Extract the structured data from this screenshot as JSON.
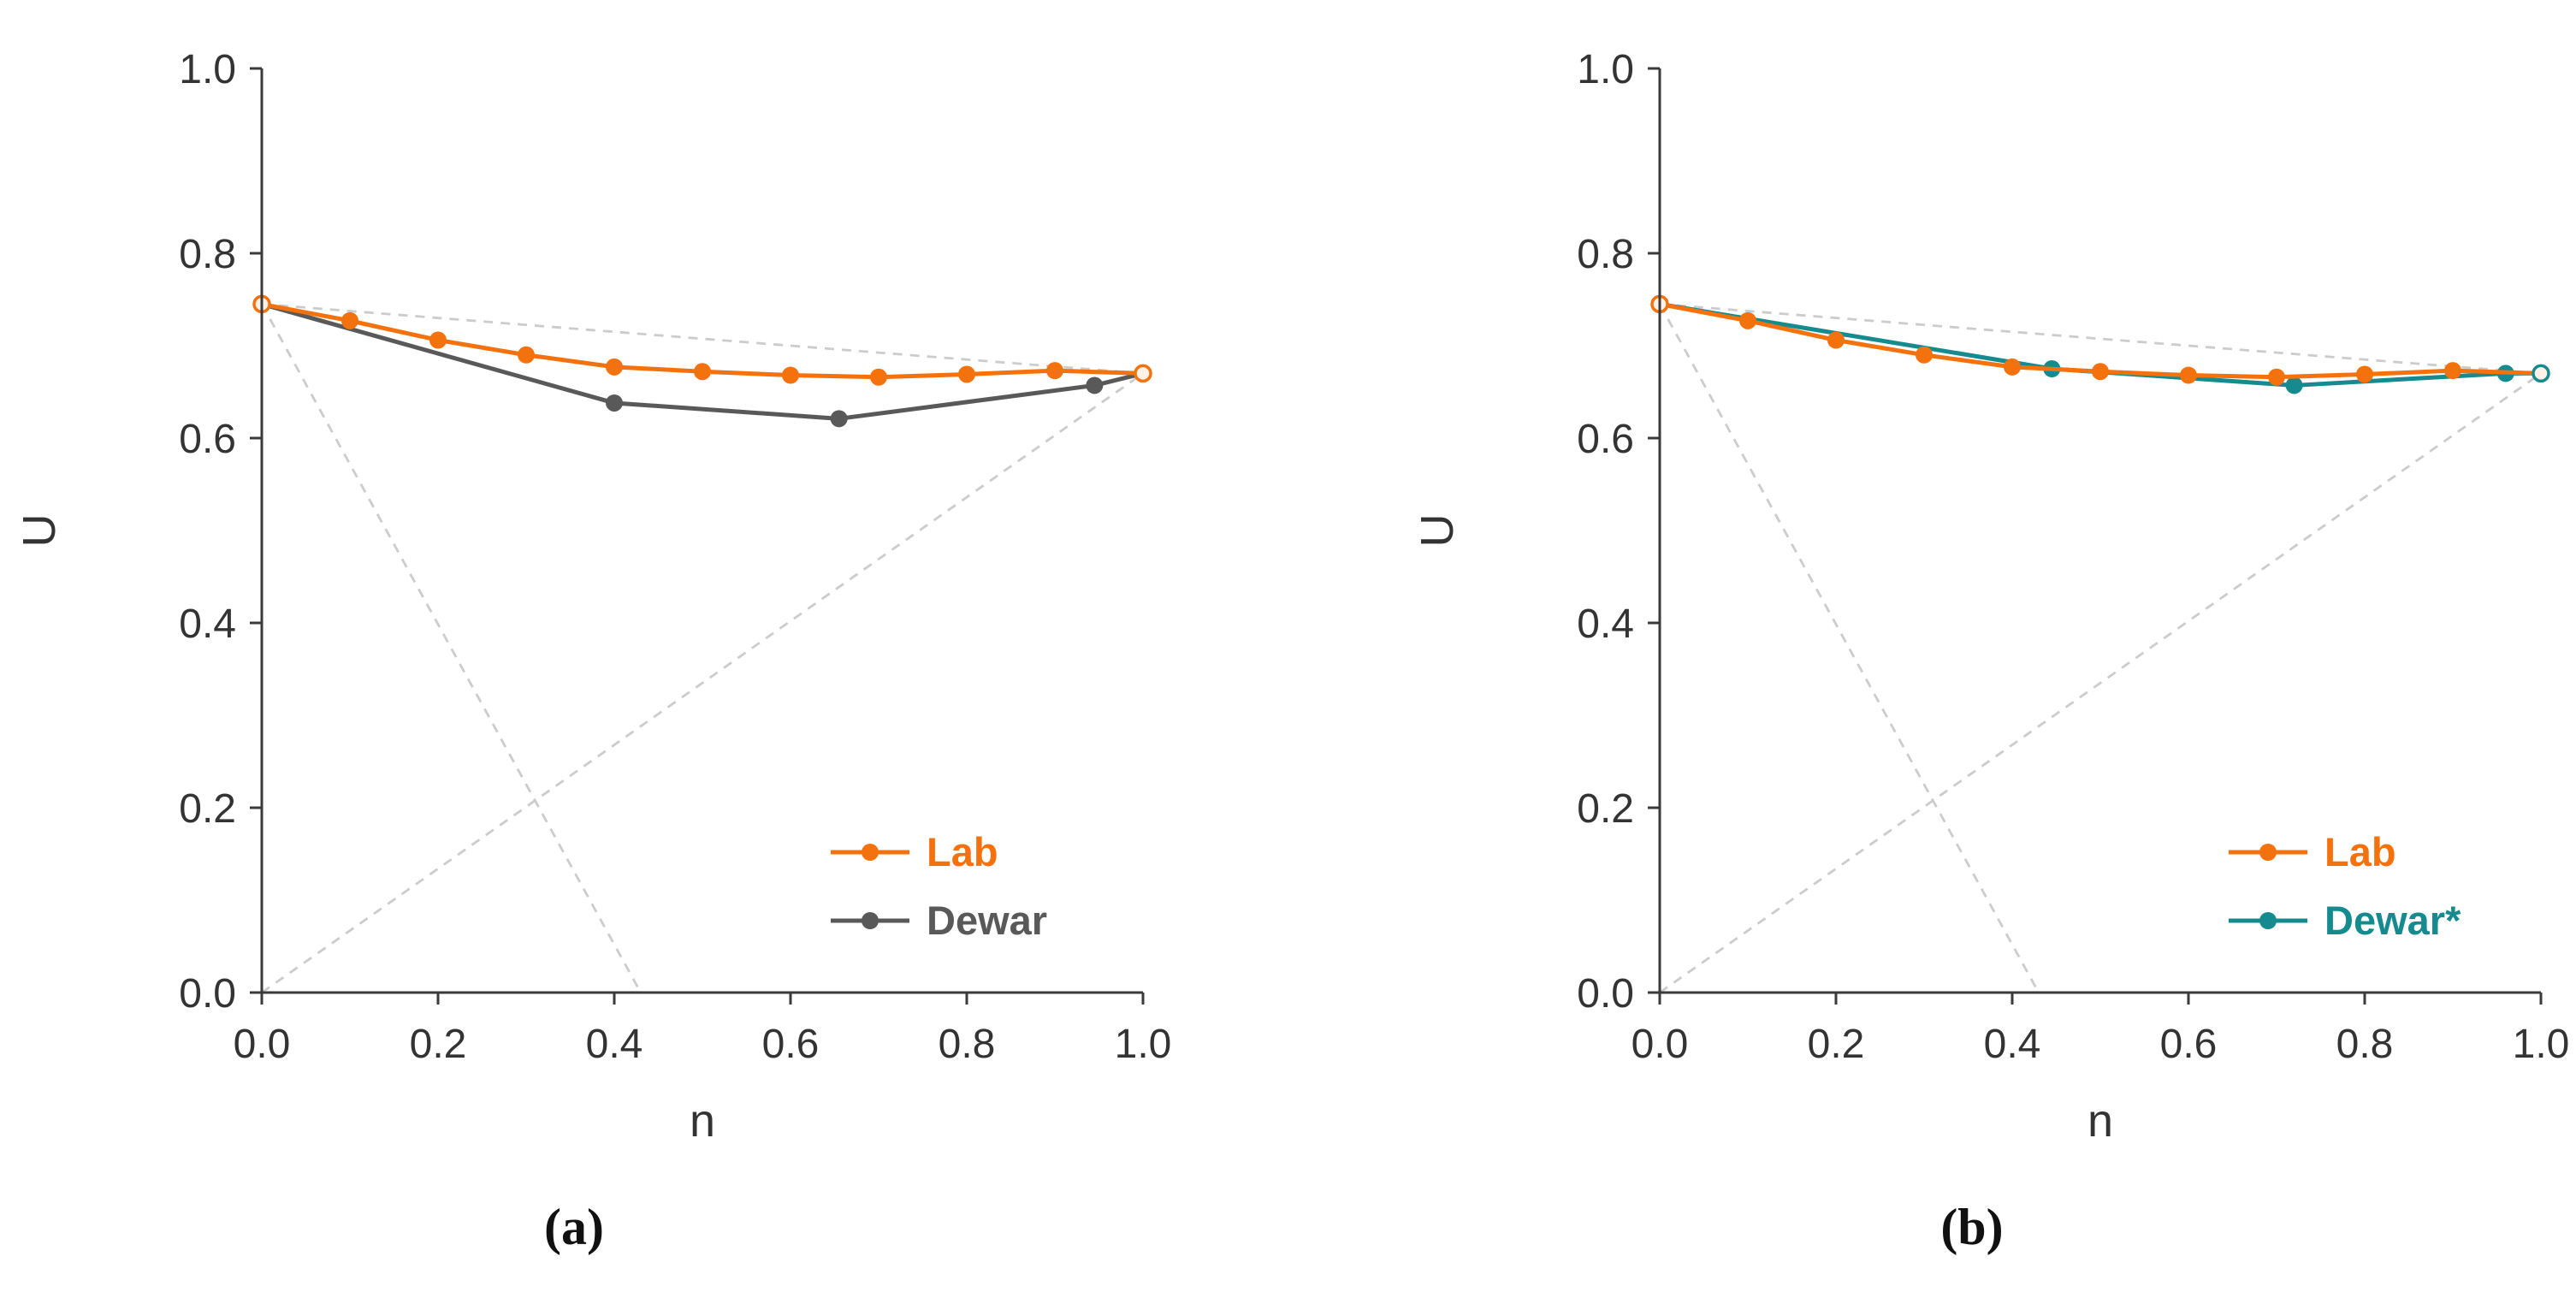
{
  "page": {
    "background": "#ffffff",
    "captions": {
      "a": "(a)",
      "b": "(b)"
    }
  },
  "colors": {
    "lab_orange": "#F4720D",
    "dewar_gray": "#595959",
    "dewar_teal": "#168B8F",
    "reference_dash": "#cccccc",
    "axis": "#3a3a3a",
    "tick_text": "#333333"
  },
  "chart_data": [
    {
      "id": "a",
      "type": "line",
      "caption": "(a)",
      "xlabel": "n",
      "ylabel": "U",
      "xlim": [
        0.0,
        1.0
      ],
      "ylim": [
        0.0,
        1.0
      ],
      "xticks": [
        0.0,
        0.2,
        0.4,
        0.6,
        0.8,
        1.0
      ],
      "yticks": [
        0.0,
        0.2,
        0.4,
        0.6,
        0.8,
        1.0
      ],
      "grid": false,
      "legend_position": "lower-right-inside",
      "reference_lines": [
        {
          "x1": 0.0,
          "y1": 0.745,
          "x2": 1.0,
          "y2": 0.67
        },
        {
          "x1": 0.0,
          "y1": 0.745,
          "x2": 0.43,
          "y2": 0.0
        },
        {
          "x1": 0.0,
          "y1": 0.0,
          "x2": 1.0,
          "y2": 0.67
        }
      ],
      "series": [
        {
          "name": "Dewar",
          "color": "#595959",
          "x": [
            0.0,
            0.4,
            0.655,
            0.945,
            1.0
          ],
          "y": [
            0.745,
            0.638,
            0.621,
            0.657,
            0.67
          ]
        },
        {
          "name": "Lab",
          "color": "#F4720D",
          "x": [
            0.0,
            0.1,
            0.2,
            0.3,
            0.4,
            0.5,
            0.6,
            0.7,
            0.8,
            0.9,
            1.0
          ],
          "y": [
            0.745,
            0.727,
            0.706,
            0.69,
            0.677,
            0.672,
            0.668,
            0.666,
            0.669,
            0.673,
            0.67
          ]
        }
      ],
      "open_markers": [
        {
          "x": 0.0,
          "y": 0.745,
          "color": "#F4720D"
        },
        {
          "x": 1.0,
          "y": 0.67,
          "color": "#F4720D"
        }
      ],
      "legend": [
        {
          "label": "Lab",
          "color": "#F4720D"
        },
        {
          "label": "Dewar",
          "color": "#595959"
        }
      ]
    },
    {
      "id": "b",
      "type": "line",
      "caption": "(b)",
      "xlabel": "n",
      "ylabel": "U",
      "xlim": [
        0.0,
        1.0
      ],
      "ylim": [
        0.0,
        1.0
      ],
      "xticks": [
        0.0,
        0.2,
        0.4,
        0.6,
        0.8,
        1.0
      ],
      "yticks": [
        0.0,
        0.2,
        0.4,
        0.6,
        0.8,
        1.0
      ],
      "grid": false,
      "legend_position": "lower-right-inside",
      "reference_lines": [
        {
          "x1": 0.0,
          "y1": 0.745,
          "x2": 1.0,
          "y2": 0.67
        },
        {
          "x1": 0.0,
          "y1": 0.745,
          "x2": 0.43,
          "y2": 0.0
        },
        {
          "x1": 0.0,
          "y1": 0.0,
          "x2": 1.0,
          "y2": 0.67
        }
      ],
      "series": [
        {
          "name": "Dewar*",
          "color": "#168B8F",
          "x": [
            0.0,
            0.445,
            0.72,
            0.96,
            1.0
          ],
          "y": [
            0.745,
            0.675,
            0.657,
            0.67,
            0.67
          ]
        },
        {
          "name": "Lab",
          "color": "#F4720D",
          "x": [
            0.0,
            0.1,
            0.2,
            0.3,
            0.4,
            0.5,
            0.6,
            0.7,
            0.8,
            0.9,
            1.0
          ],
          "y": [
            0.745,
            0.727,
            0.706,
            0.69,
            0.677,
            0.672,
            0.668,
            0.666,
            0.669,
            0.673,
            0.67
          ]
        }
      ],
      "open_markers": [
        {
          "x": 0.0,
          "y": 0.745,
          "color": "#F4720D"
        },
        {
          "x": 1.0,
          "y": 0.67,
          "color": "#168B8F"
        }
      ],
      "legend": [
        {
          "label": "Lab",
          "color": "#F4720D"
        },
        {
          "label": "Dewar*",
          "color": "#168B8F"
        }
      ]
    }
  ]
}
